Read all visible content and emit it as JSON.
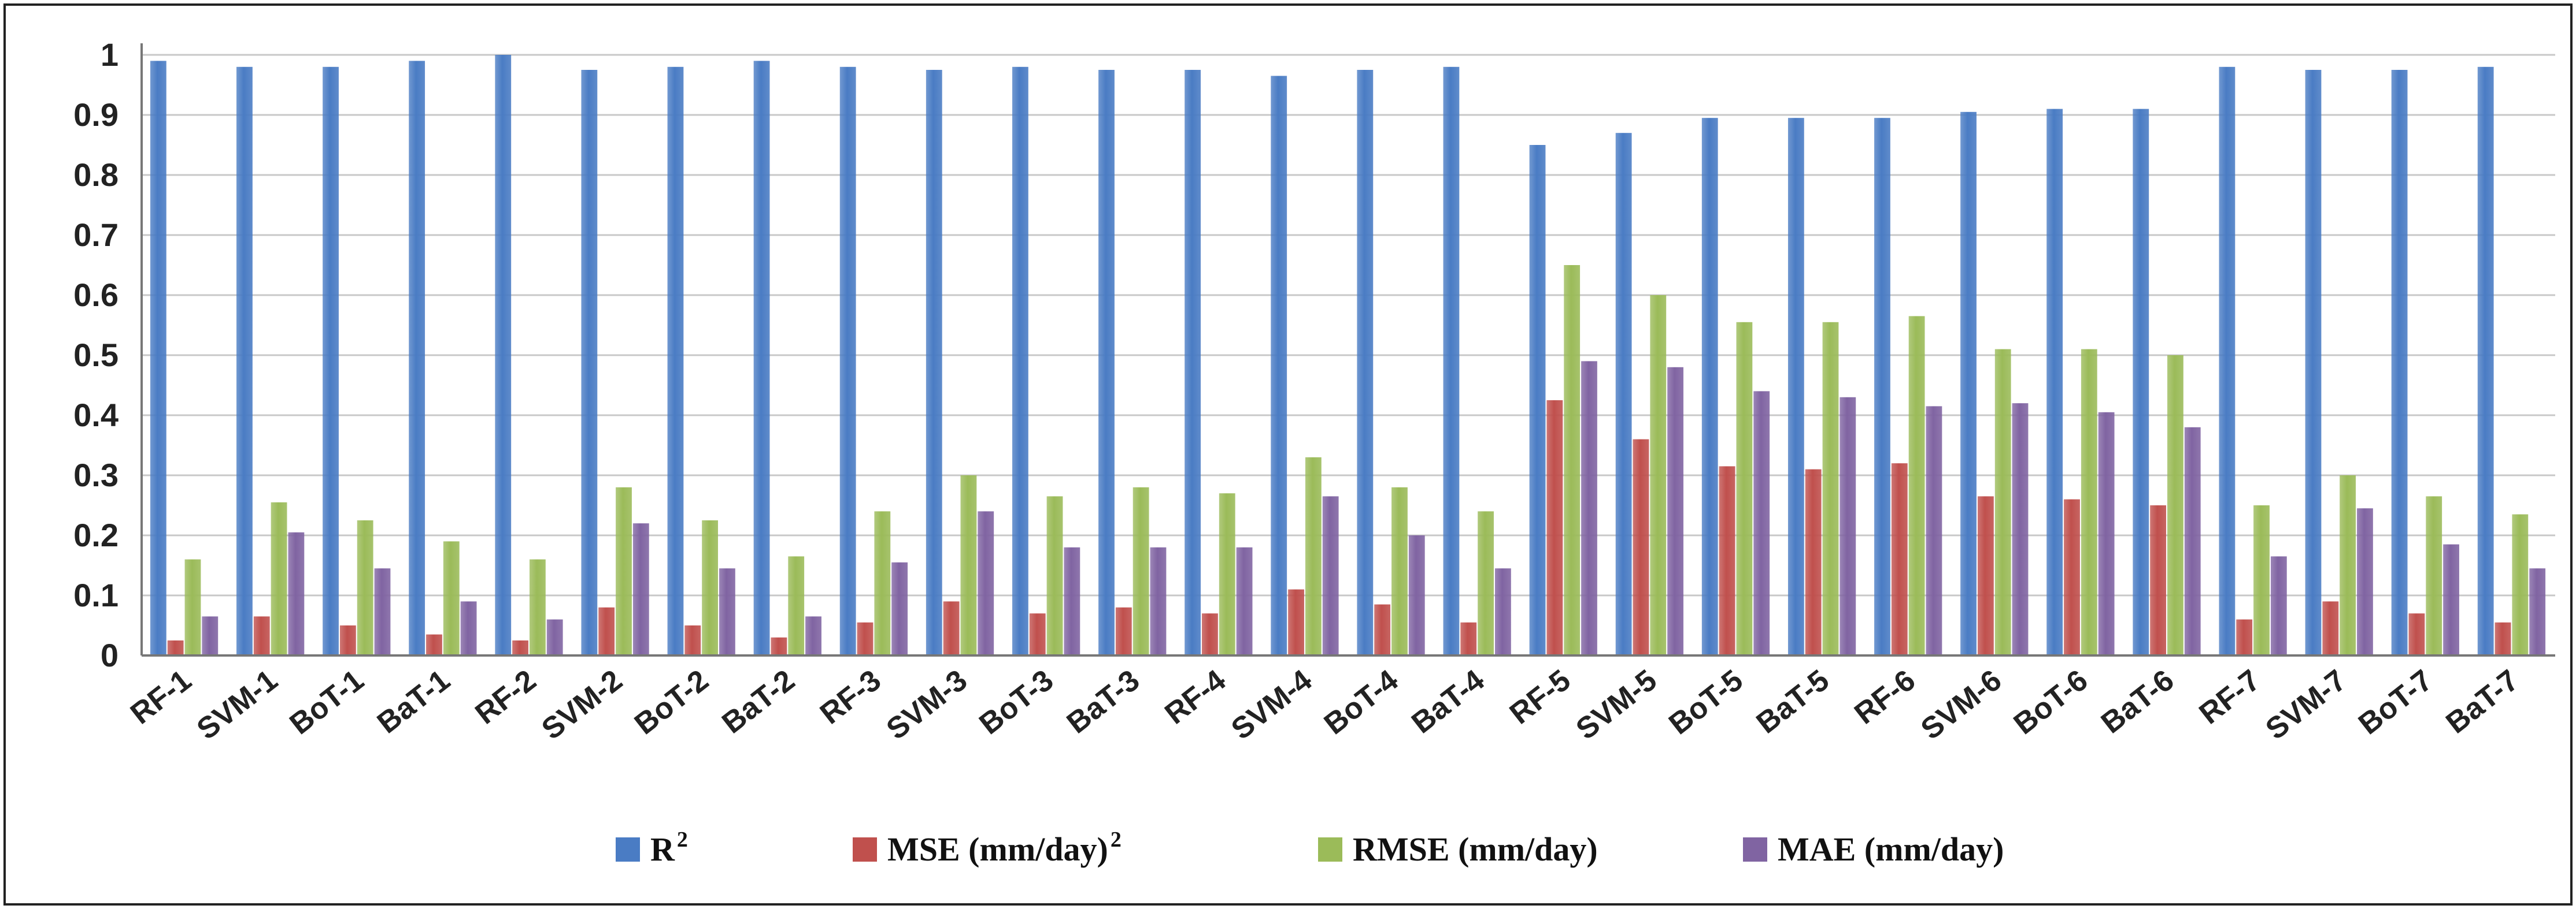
{
  "chart_data": {
    "type": "bar",
    "categories": [
      "RF-1",
      "SVM-1",
      "BoT-1",
      "BaT-1",
      "RF-2",
      "SVM-2",
      "BoT-2",
      "BaT-2",
      "RF-3",
      "SVM-3",
      "BoT-3",
      "BaT-3",
      "RF-4",
      "SVM-4",
      "BoT-4",
      "BaT-4",
      "RF-5",
      "SVM-5",
      "BoT-5",
      "BaT-5",
      "RF-6",
      "SVM-6",
      "BoT-6",
      "BaT-6",
      "RF-7",
      "SVM-7",
      "BoT-7",
      "BaT-7"
    ],
    "series": [
      {
        "name": "R",
        "name_superscript": "2",
        "color": "#4a7cc4",
        "values": [
          0.99,
          0.98,
          0.98,
          0.99,
          1.0,
          0.975,
          0.98,
          0.99,
          0.98,
          0.975,
          0.98,
          0.975,
          0.975,
          0.965,
          0.975,
          0.98,
          0.85,
          0.87,
          0.895,
          0.895,
          0.895,
          0.905,
          0.91,
          0.91,
          0.98,
          0.975,
          0.975,
          0.98
        ]
      },
      {
        "name": "MSE (mm/day)",
        "name_superscript": "2",
        "color": "#c0504d",
        "values": [
          0.025,
          0.065,
          0.05,
          0.035,
          0.025,
          0.08,
          0.05,
          0.03,
          0.055,
          0.09,
          0.07,
          0.08,
          0.07,
          0.11,
          0.085,
          0.055,
          0.425,
          0.36,
          0.315,
          0.31,
          0.32,
          0.265,
          0.26,
          0.25,
          0.06,
          0.09,
          0.07,
          0.055
        ]
      },
      {
        "name": "RMSE (mm/day)",
        "name_superscript": "",
        "color": "#9bbb59",
        "values": [
          0.16,
          0.255,
          0.225,
          0.19,
          0.16,
          0.28,
          0.225,
          0.165,
          0.24,
          0.3,
          0.265,
          0.28,
          0.27,
          0.33,
          0.28,
          0.24,
          0.65,
          0.6,
          0.555,
          0.555,
          0.565,
          0.51,
          0.51,
          0.5,
          0.25,
          0.3,
          0.265,
          0.235
        ]
      },
      {
        "name": "MAE (mm/day)",
        "name_superscript": "",
        "color": "#8064a2",
        "values": [
          0.065,
          0.205,
          0.145,
          0.09,
          0.06,
          0.22,
          0.145,
          0.065,
          0.155,
          0.24,
          0.18,
          0.18,
          0.18,
          0.265,
          0.2,
          0.145,
          0.49,
          0.48,
          0.44,
          0.43,
          0.415,
          0.42,
          0.405,
          0.38,
          0.165,
          0.245,
          0.185,
          0.145
        ]
      }
    ],
    "yticks": [
      "0",
      "0.1",
      "0.2",
      "0.3",
      "0.4",
      "0.5",
      "0.6",
      "0.7",
      "0.8",
      "0.9",
      "1"
    ],
    "ylim": [
      0,
      1
    ],
    "grid": true,
    "legend_position": "bottom"
  }
}
